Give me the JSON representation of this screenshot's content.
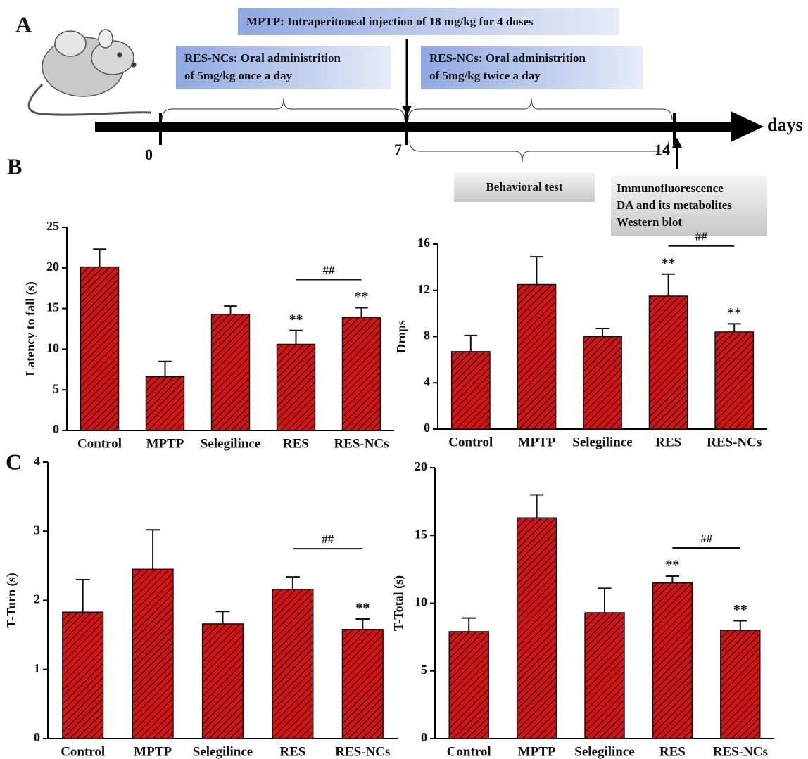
{
  "panel_labels": [
    "A",
    "B",
    "C"
  ],
  "timeline": {
    "mptp": "MPTP: Intraperitoneal injection of 18 mg/kg for 4 doses",
    "res_once": [
      "RES-NCs: Oral administrition",
      "of 5mg/kg once a day"
    ],
    "res_twice": [
      "RES-NCs: Oral administrition",
      "of 5mg/kg twice a day"
    ],
    "days": "days",
    "day_labels": [
      "0",
      "7",
      "14"
    ],
    "behavioral": "Behavioral test",
    "assays": [
      "Immunofluorescence",
      "DA and its metabolites",
      "Western blot"
    ]
  },
  "chart_data": [
    {
      "type": "bar",
      "y_label": "Latency to fall (s)",
      "categories": [
        "Control",
        "MPTP",
        "Selegilince",
        "RES",
        "RES-NCs"
      ],
      "values": [
        20.1,
        6.6,
        14.3,
        10.6,
        13.9
      ],
      "errors": [
        2.2,
        1.9,
        1.0,
        1.7,
        1.2
      ],
      "color": "#d41414",
      "stars": [
        null,
        null,
        null,
        "**",
        "**"
      ],
      "bracket_label": "##",
      "ylim": [
        0,
        25
      ],
      "yticks": [
        0,
        5,
        10,
        15,
        20,
        25
      ]
    },
    {
      "type": "bar",
      "y_label": "Drops",
      "categories": [
        "Control",
        "MPTP",
        "Selegilince",
        "RES",
        "RES-NCs"
      ],
      "values": [
        6.7,
        12.5,
        8.0,
        11.5,
        8.4
      ],
      "errors": [
        1.4,
        2.4,
        0.7,
        1.9,
        0.7
      ],
      "color": "#d41414",
      "stars": [
        null,
        null,
        null,
        "**",
        "**"
      ],
      "bracket_label": "##",
      "ylim": [
        0,
        16
      ],
      "yticks": [
        0,
        4,
        8,
        12,
        16
      ]
    },
    {
      "type": "bar",
      "y_label": "T-Turn (s)",
      "categories": [
        "Control",
        "MPTP",
        "Selegilince",
        "RES",
        "RES-NCs"
      ],
      "values": [
        1.83,
        2.45,
        1.66,
        2.16,
        1.58
      ],
      "errors": [
        0.47,
        0.57,
        0.18,
        0.18,
        0.15
      ],
      "color": "#d41414",
      "stars": [
        null,
        null,
        null,
        null,
        "**"
      ],
      "bracket_label": "##",
      "ylim": [
        0,
        4
      ],
      "yticks": [
        0,
        1,
        2,
        3,
        4
      ]
    },
    {
      "type": "bar",
      "y_label": "T-Total (s)",
      "categories": [
        "Control",
        "MPTP",
        "Selegilince",
        "RES",
        "RES-NCs"
      ],
      "values": [
        7.9,
        16.3,
        9.3,
        11.5,
        8.0
      ],
      "errors": [
        1.0,
        1.7,
        1.8,
        0.5,
        0.7
      ],
      "color": "#d41414",
      "stars": [
        null,
        null,
        null,
        "**",
        "**"
      ],
      "bracket_label": "##",
      "ylim": [
        0,
        20
      ],
      "yticks": [
        0,
        5,
        10,
        15,
        20
      ]
    }
  ]
}
